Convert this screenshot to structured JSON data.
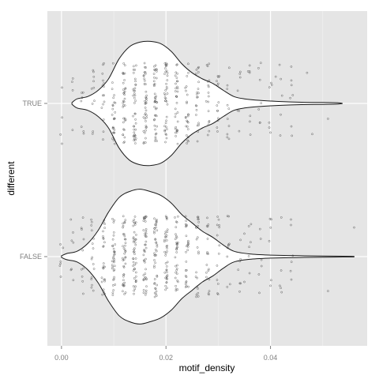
{
  "chart_data": {
    "type": "violin",
    "xlabel": "motif_density",
    "ylabel": "different",
    "xlim": [
      -0.0027,
      0.0585
    ],
    "x_ticks": [
      {
        "value": 0.0,
        "label": "0.00"
      },
      {
        "value": 0.02,
        "label": "0.02"
      },
      {
        "value": 0.04,
        "label": "0.04"
      }
    ],
    "categories": [
      "FALSE",
      "TRUE"
    ],
    "grid": true,
    "legend": "none",
    "colors": {
      "panel": "#e5e5e5",
      "grid_major": "#ffffff",
      "grid_minor": "#f2f2f2",
      "violin_fill": "#ffffff",
      "violin_stroke": "#1a1a1a",
      "point": "#333333"
    },
    "density_stripes": [
      0.0,
      0.002,
      0.004,
      0.006,
      0.008,
      0.01,
      0.012,
      0.014,
      0.016,
      0.018,
      0.02,
      0.022,
      0.024,
      0.026,
      0.028,
      0.03,
      0.032,
      0.034,
      0.036,
      0.038,
      0.04,
      0.042,
      0.044
    ],
    "series": [
      {
        "name": "TRUE",
        "violin": [
          [
            0.002,
            0.01
          ],
          [
            0.003,
            0.06
          ],
          [
            0.005,
            0.09
          ],
          [
            0.007,
            0.17
          ],
          [
            0.009,
            0.32
          ],
          [
            0.011,
            0.58
          ],
          [
            0.013,
            0.74
          ],
          [
            0.015,
            0.8
          ],
          [
            0.017,
            0.81
          ],
          [
            0.019,
            0.78
          ],
          [
            0.021,
            0.68
          ],
          [
            0.023,
            0.52
          ],
          [
            0.025,
            0.4
          ],
          [
            0.027,
            0.32
          ],
          [
            0.029,
            0.26
          ],
          [
            0.031,
            0.17
          ],
          [
            0.033,
            0.09
          ],
          [
            0.035,
            0.06
          ],
          [
            0.038,
            0.04
          ],
          [
            0.042,
            0.025
          ],
          [
            0.046,
            0.015
          ],
          [
            0.05,
            0.012
          ],
          [
            0.053,
            0.008
          ],
          [
            0.0538,
            0.0
          ]
        ],
        "outliers": [
          [
            0.044,
            0.3
          ],
          [
            0.044,
            -0.3
          ],
          [
            0.048,
            0.4
          ],
          [
            0.047,
            -0.4
          ],
          [
            0.051,
            0.2
          ],
          [
            0.04,
            0.38
          ],
          [
            0.041,
            -0.35
          ],
          [
            0.038,
            0.25
          ],
          [
            0.036,
            -0.42
          ]
        ]
      },
      {
        "name": "FALSE",
        "violin": [
          [
            0.0,
            0.01
          ],
          [
            0.001,
            0.04
          ],
          [
            0.003,
            0.07
          ],
          [
            0.005,
            0.17
          ],
          [
            0.007,
            0.34
          ],
          [
            0.009,
            0.58
          ],
          [
            0.011,
            0.77
          ],
          [
            0.013,
            0.85
          ],
          [
            0.015,
            0.88
          ],
          [
            0.017,
            0.85
          ],
          [
            0.019,
            0.8
          ],
          [
            0.021,
            0.7
          ],
          [
            0.023,
            0.55
          ],
          [
            0.025,
            0.44
          ],
          [
            0.027,
            0.33
          ],
          [
            0.029,
            0.25
          ],
          [
            0.031,
            0.15
          ],
          [
            0.033,
            0.07
          ],
          [
            0.036,
            0.035
          ],
          [
            0.04,
            0.02
          ],
          [
            0.045,
            0.012
          ],
          [
            0.05,
            0.008
          ],
          [
            0.0555,
            0.004
          ],
          [
            0.0558,
            0.0
          ]
        ],
        "outliers": [
          [
            -0.0003,
            0.12
          ],
          [
            -0.0002,
            -0.16
          ],
          [
            0.051,
            0.45
          ],
          [
            0.056,
            -0.38
          ],
          [
            0.044,
            0.3
          ],
          [
            0.04,
            0.38
          ],
          [
            0.038,
            -0.36
          ],
          [
            0.035,
            0.33
          ],
          [
            0.035,
            -0.3
          ]
        ]
      }
    ]
  }
}
